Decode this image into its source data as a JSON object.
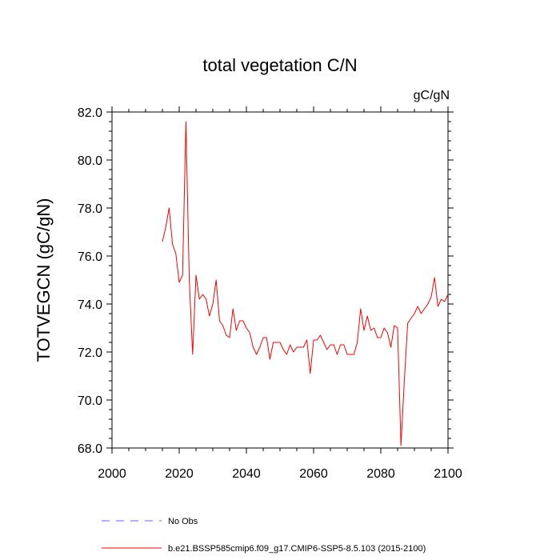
{
  "chart_data": {
    "type": "line",
    "title": "total vegetation C/N",
    "units": "gC/gN",
    "xlabel": "",
    "ylabel": "TOTVEGCN  (gC/gN)",
    "xlim": [
      2000,
      2100
    ],
    "ylim": [
      68,
      82
    ],
    "x_ticks": [
      2000,
      2020,
      2040,
      2060,
      2080,
      2100
    ],
    "x_tick_labels": [
      "2000",
      "2020",
      "2040",
      "2060",
      "2080",
      "2100"
    ],
    "y_ticks": [
      68,
      70,
      72,
      74,
      76,
      78,
      80,
      82
    ],
    "y_tick_labels": [
      "68.0",
      "70.0",
      "72.0",
      "74.0",
      "76.0",
      "78.0",
      "80.0",
      "82.0"
    ],
    "grid": false,
    "legend_position": "bottom",
    "series": [
      {
        "name": "No Obs",
        "color": "#6666ff",
        "dash": true,
        "x": [],
        "y": []
      },
      {
        "name": "b.e21.BSSP585cmip6.f09_g17.CMIP6-SSP5-8.5.103 (2015-2100)",
        "color": "#ff0000",
        "dash": false,
        "x": [
          2015,
          2016,
          2017,
          2018,
          2019,
          2020,
          2021,
          2022,
          2023,
          2024,
          2025,
          2026,
          2027,
          2028,
          2029,
          2030,
          2031,
          2032,
          2033,
          2034,
          2035,
          2036,
          2037,
          2038,
          2039,
          2040,
          2041,
          2042,
          2043,
          2044,
          2045,
          2046,
          2047,
          2048,
          2049,
          2050,
          2051,
          2052,
          2053,
          2054,
          2055,
          2056,
          2057,
          2058,
          2059,
          2060,
          2061,
          2062,
          2063,
          2064,
          2065,
          2066,
          2067,
          2068,
          2069,
          2070,
          2071,
          2072,
          2073,
          2074,
          2075,
          2076,
          2077,
          2078,
          2079,
          2080,
          2081,
          2082,
          2083,
          2084,
          2085,
          2086,
          2087,
          2088,
          2089,
          2090,
          2091,
          2092,
          2093,
          2094,
          2095,
          2096,
          2097,
          2098,
          2099,
          2100
        ],
        "y": [
          76.6,
          77.2,
          78.0,
          76.5,
          76.1,
          74.9,
          75.2,
          81.6,
          75.0,
          71.9,
          75.2,
          74.2,
          74.4,
          74.2,
          73.5,
          74.0,
          75.0,
          73.3,
          73.1,
          72.7,
          72.6,
          73.8,
          72.9,
          73.3,
          73.3,
          73.0,
          72.8,
          72.2,
          71.9,
          72.2,
          72.6,
          72.6,
          71.7,
          72.4,
          72.4,
          72.4,
          72.1,
          71.9,
          72.3,
          72.0,
          72.2,
          72.2,
          72.2,
          72.5,
          71.1,
          72.5,
          72.5,
          72.7,
          72.4,
          72.1,
          72.3,
          72.3,
          71.9,
          72.3,
          72.3,
          71.9,
          71.9,
          71.9,
          72.4,
          73.8,
          72.9,
          73.5,
          72.9,
          73.0,
          72.6,
          72.6,
          73.0,
          72.8,
          72.2,
          73.1,
          73.0,
          68.1,
          70.8,
          73.2,
          73.4,
          73.6,
          73.9,
          73.6,
          73.8,
          74.0,
          74.3,
          75.1,
          73.9,
          74.2,
          74.1,
          74.4
        ]
      }
    ]
  }
}
